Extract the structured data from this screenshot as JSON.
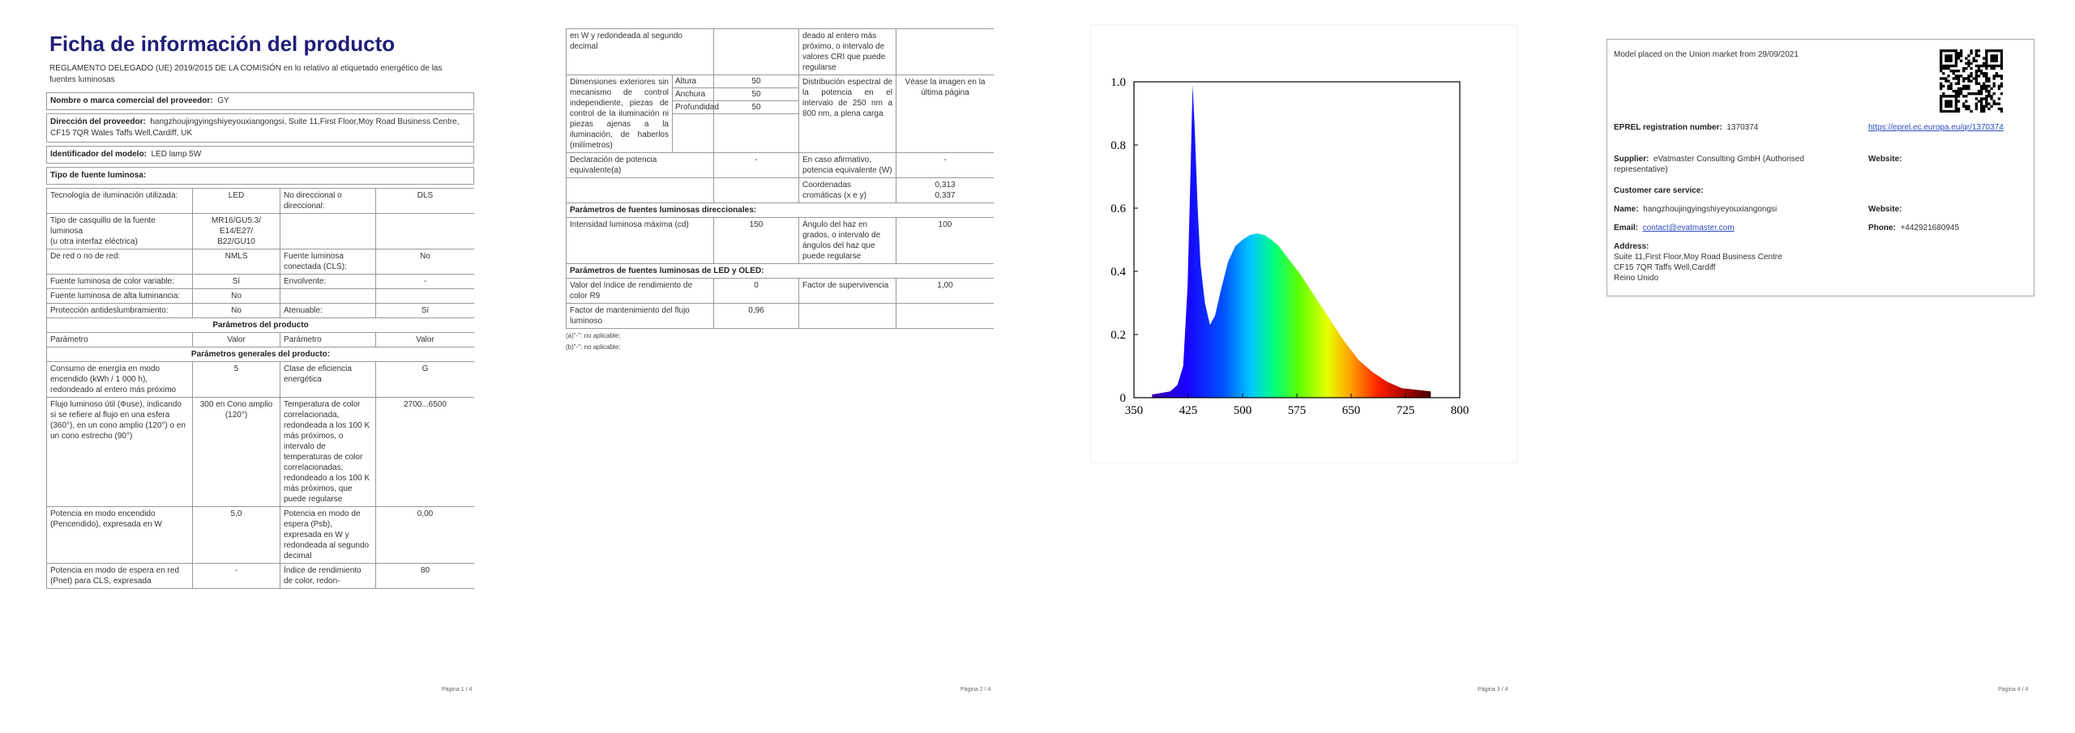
{
  "page1": {
    "title": "Ficha de información del producto",
    "regulation": "REGLAMENTO DELEGADO (UE) 2019/2015 DE LA COMISIÓN en lo relativo al etiquetado energético de las fuentes luminosas",
    "fields": [
      {
        "label": "Nombre o marca comercial del proveedor:",
        "value": "GY"
      },
      {
        "label": "Dirección del proveedor:",
        "value": "hangzhoujingyingshiyeyouxiangongsi, Suite 11,First Floor,Moy Road Business Centre, CF15 7QR Wales Taffs Well,Cardiff, UK"
      },
      {
        "label": "Identificador del modelo:",
        "value": "LED lamp 5W"
      }
    ],
    "type_heading": "Tipo de fuente luminosa:",
    "rows": [
      [
        "Tecnología de iluminación utilizada:",
        "LED",
        "No direccional o direccional:",
        "DLS"
      ],
      [
        "Tipo de casquillo de la fuente luminosa\n(u otra interfaz eléctrica)",
        "MR16/GU5.3/\nE14/E27/\nB22/GU10",
        null,
        null
      ],
      [
        "De red o no de red:",
        "NMLS",
        "Fuente luminosa conectada (CLS):",
        "No"
      ],
      [
        "Fuente luminosa de color variable:",
        "Sí",
        "Envolvente:",
        "-"
      ],
      [
        "Fuente luminosa de alta luminancia:",
        "No",
        null,
        null
      ],
      [
        "Protección antideslumbramiento:",
        "No",
        "Atenuable:",
        "Sí"
      ],
      {
        "section": "Parámetros del producto"
      },
      [
        "Parámetro",
        "Valor",
        "Parámetro",
        "Valor"
      ],
      {
        "section": "Parámetros generales del producto:"
      },
      [
        "Consumo de energía en modo encendido (kWh / 1 000 h), redondeado al entero más próximo",
        "5",
        "Clase de eficiencia energética",
        "G"
      ],
      [
        "Flujo luminoso útil (Φuse), indicando si se refiere al flujo en una esfera (360°), en un cono amplio (120°) o en un cono estrecho (90°)",
        "300 en Cono amplio (120°)",
        "Temperatura de color correlacionada, redondeada a los 100 K más próximos, o intervalo de temperaturas de color correlacionadas, redondeado a los 100 K más próximos, que puede regularse",
        "2700...6500"
      ],
      [
        "Potencia en modo encendido (Pencendido), expresada en W",
        "5,0",
        "Potencia en modo de espera (Psb), expresada en W y redondeada al segundo decimal",
        "0,00"
      ],
      [
        "Potencia en modo de espera en red (Pnet) para CLS, expresada",
        "-",
        "Índice de rendimiento de color, redon-",
        "80"
      ]
    ],
    "footer": "Página 1 / 4"
  },
  "page2": {
    "rows": [
      [
        "en W y redondeada al segundo decimal",
        null,
        "deado al entero más próximo, o intervalo de valores CRI que puede regularse",
        null
      ],
      {
        "dimensions": {
          "label": "Dimensiones exteriores sin mecanismo de control independiente, piezas de control de la iluminación ni piezas ajenas a la iluminación, de haberlos (milímetros)",
          "items": [
            {
              "name": "Altura",
              "value": "50"
            },
            {
              "name": "Anchura",
              "value": "50"
            },
            {
              "name": "Profundidad",
              "value": "50"
            }
          ],
          "param": "Distribución espectral de la potencia en el intervalo de 250 nm a 800 nm, a plena carga",
          "param_value": "Véase la imagen en la última página"
        }
      },
      [
        "Declaración de potencia equivalente(a)",
        "-",
        "En caso afirmativo, potencia equivalente (W)",
        "-"
      ],
      [
        null,
        null,
        "Coordenadas cromáticas (x e y)",
        "0,313\n0,337"
      ],
      {
        "heading": "Parámetros de fuentes luminosas direccionales:"
      },
      [
        "Intensidad luminosa máxima (cd)",
        "150",
        "Ángulo del haz en grados, o intervalo de ángulos del haz que puede regularse",
        "100"
      ],
      {
        "heading": "Parámetros de fuentes luminosas de LED y OLED:"
      },
      [
        "Valor del índice de rendimiento de color R9",
        "0",
        "Factor de supervivencia",
        "1,00"
      ],
      [
        "Factor de mantenimiento del flujo luminoso",
        "0,96",
        null,
        null
      ]
    ],
    "notes": [
      "(a)\"-\": no aplicable;",
      "(b)\"-\": no aplicable;"
    ],
    "footer": "Página 2 / 4"
  },
  "page3": {
    "spectrum": {
      "xlim": [
        350,
        800
      ],
      "ylim": [
        0,
        1
      ],
      "xticks": [
        350,
        425,
        500,
        575,
        650,
        725,
        800
      ],
      "yticks": [
        0,
        0.2,
        0.4,
        0.6,
        0.8,
        {
          "value": 1,
          "label": "1.0"
        }
      ],
      "x": [
        375,
        400,
        410,
        418,
        424,
        428,
        431,
        434,
        438,
        442,
        448,
        455,
        462,
        470,
        480,
        490,
        500,
        510,
        520,
        530,
        540,
        550,
        560,
        580,
        600,
        620,
        640,
        660,
        680,
        700,
        720,
        740,
        760
      ],
      "values": [
        0.01,
        0.02,
        0.04,
        0.1,
        0.35,
        0.7,
        0.99,
        0.85,
        0.6,
        0.42,
        0.3,
        0.23,
        0.26,
        0.34,
        0.43,
        0.48,
        0.5,
        0.515,
        0.52,
        0.515,
        0.5,
        0.48,
        0.45,
        0.39,
        0.32,
        0.25,
        0.18,
        0.12,
        0.08,
        0.05,
        0.03,
        0.025,
        0.02
      ]
    },
    "footer": "Página 3 / 4"
  },
  "page4": {
    "placed": "Model placed on the Union market from 29/09/2021",
    "eprel": {
      "label": "EPREL registration number:",
      "value": "1370374",
      "link": "https://eprel.ec.europa.eu/qr/1370374"
    },
    "supplier": {
      "label": "Supplier:",
      "value": "eVatmaster Consulting GmbH (Authorised representative)"
    },
    "website_1": "Website:",
    "customer_care": "Customer care service:",
    "name": {
      "label": "Name:",
      "value": "hangzhoujingyingshiyeyouxiangongsi"
    },
    "website_2": "Website:",
    "email": {
      "label": "Email:",
      "value": "contact@evatmaster.com"
    },
    "phone": {
      "label": "Phone:",
      "value": "+442921680945"
    },
    "address": {
      "label": "Address:",
      "lines": [
        "Suite 11,First Floor,Moy Road Business Centre",
        "CF15 7QR Taffs Well,Cardiff",
        "Reino Unido"
      ]
    },
    "footer": "Página 4 / 4"
  }
}
